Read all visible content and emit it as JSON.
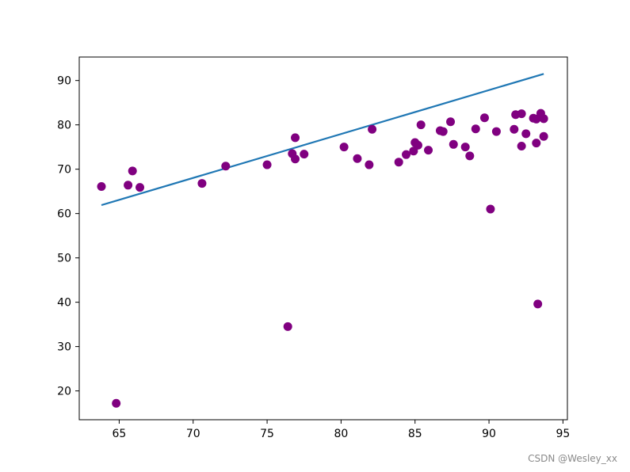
{
  "watermark": "CSDN @Wesley_xx",
  "chart_data": {
    "type": "scatter",
    "title": "",
    "xlabel": "",
    "ylabel": "",
    "xlim": [
      62.3,
      95.3
    ],
    "ylim": [
      13.5,
      95.3
    ],
    "x_ticks": [
      65,
      70,
      75,
      80,
      85,
      90,
      95
    ],
    "y_ticks": [
      20,
      30,
      40,
      50,
      60,
      70,
      80,
      90
    ],
    "grid": false,
    "legend": "none",
    "colors": {
      "points": "#800080",
      "line": "#1f77b4"
    },
    "series": [
      {
        "type": "scatter",
        "points": [
          [
            63.8,
            66.1
          ],
          [
            64.8,
            17.2
          ],
          [
            65.6,
            66.4
          ],
          [
            65.9,
            69.6
          ],
          [
            66.4,
            65.9
          ],
          [
            70.6,
            66.8
          ],
          [
            72.2,
            70.7
          ],
          [
            75.0,
            71.0
          ],
          [
            76.4,
            34.5
          ],
          [
            76.7,
            73.5
          ],
          [
            76.9,
            72.3
          ],
          [
            76.9,
            77.1
          ],
          [
            77.5,
            73.4
          ],
          [
            80.2,
            75.0
          ],
          [
            81.1,
            72.4
          ],
          [
            81.9,
            71.0
          ],
          [
            82.1,
            79.0
          ],
          [
            83.9,
            71.6
          ],
          [
            84.4,
            73.3
          ],
          [
            84.9,
            74.1
          ],
          [
            85.0,
            76.0
          ],
          [
            85.2,
            75.4
          ],
          [
            85.4,
            80.0
          ],
          [
            85.9,
            74.3
          ],
          [
            86.7,
            78.7
          ],
          [
            86.9,
            78.5
          ],
          [
            87.4,
            80.7
          ],
          [
            87.6,
            75.6
          ],
          [
            88.4,
            75.0
          ],
          [
            88.7,
            73.0
          ],
          [
            89.1,
            79.1
          ],
          [
            89.7,
            81.6
          ],
          [
            90.1,
            61.0
          ],
          [
            90.5,
            78.5
          ],
          [
            91.7,
            79.0
          ],
          [
            91.8,
            82.3
          ],
          [
            92.2,
            82.5
          ],
          [
            92.2,
            75.2
          ],
          [
            92.5,
            78.0
          ],
          [
            93.0,
            81.5
          ],
          [
            93.2,
            81.3
          ],
          [
            93.2,
            75.9
          ],
          [
            93.3,
            39.6
          ],
          [
            93.5,
            82.6
          ],
          [
            93.7,
            81.4
          ],
          [
            93.7,
            77.4
          ]
        ]
      },
      {
        "type": "line",
        "points": [
          [
            63.8,
            61.9
          ],
          [
            93.7,
            91.5
          ]
        ]
      }
    ]
  }
}
